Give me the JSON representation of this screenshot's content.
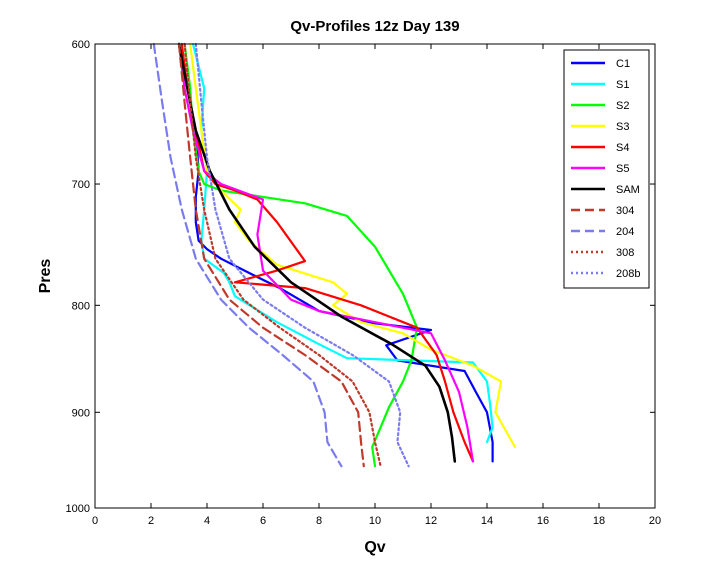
{
  "chart_data": {
    "type": "line",
    "title": "Qv-Profiles 12z Day 139",
    "xlabel": "Qv",
    "ylabel": "Pres",
    "xlim": [
      0,
      20
    ],
    "ylim": [
      600,
      1000
    ],
    "y_reversed": true,
    "y_scale": "log",
    "x_ticks": [
      "0",
      "2",
      "4",
      "6",
      "8",
      "10",
      "12",
      "14",
      "16",
      "18",
      "20"
    ],
    "y_ticks": [
      "600",
      "700",
      "800",
      "900",
      "1000"
    ],
    "grid": false,
    "legend_position": "top-right",
    "series": [
      {
        "name": "C1",
        "color": "#0000ff",
        "dash": "solid",
        "x": [
          3.0,
          3.3,
          3.6,
          3.7,
          3.6,
          3.6,
          3.7,
          4.0,
          4.5,
          5.5,
          6.6,
          8.0,
          10.0,
          12.0,
          10.4,
          10.8,
          13.2,
          13.6,
          14.0,
          14.2,
          14.2
        ],
        "y": [
          600,
          630,
          660,
          690,
          710,
          730,
          745,
          752,
          760,
          772,
          785,
          805,
          816,
          822,
          836,
          850,
          860,
          880,
          900,
          930,
          950
        ]
      },
      {
        "name": "S1",
        "color": "#00ffff",
        "dash": "solid",
        "x": [
          3.5,
          3.9,
          3.8,
          4.0,
          3.9,
          3.8,
          3.9,
          4.6,
          4.8,
          5.0,
          6.5,
          8.0,
          9.0,
          13.5,
          14.0,
          14.1,
          14.2,
          14.0
        ],
        "y": [
          600,
          630,
          660,
          690,
          720,
          745,
          760,
          772,
          780,
          792,
          815,
          835,
          848,
          852,
          870,
          890,
          915,
          930
        ]
      },
      {
        "name": "S2",
        "color": "#00ff00",
        "dash": "solid",
        "x": [
          3.2,
          3.4,
          3.5,
          3.7,
          3.9,
          4.5,
          6.0,
          7.5,
          9.0,
          10.0,
          11.0,
          11.5,
          11.3,
          11.0,
          10.5,
          10.2,
          9.9,
          10.0
        ],
        "y": [
          600,
          630,
          660,
          690,
          700,
          705,
          710,
          715,
          725,
          750,
          790,
          820,
          850,
          870,
          895,
          915,
          935,
          955
        ]
      },
      {
        "name": "S3",
        "color": "#ffff00",
        "dash": "solid",
        "x": [
          3.4,
          3.6,
          3.8,
          4.0,
          4.5,
          5.2,
          5.0,
          5.5,
          6.5,
          8.5,
          9.0,
          8.5,
          9.5,
          11.0,
          12.0,
          13.5,
          14.5,
          14.3,
          15.0
        ],
        "y": [
          600,
          630,
          660,
          690,
          705,
          720,
          730,
          745,
          765,
          780,
          790,
          800,
          815,
          825,
          840,
          855,
          870,
          900,
          935
        ]
      },
      {
        "name": "S4",
        "color": "#ff0000",
        "dash": "solid",
        "x": [
          3.1,
          3.3,
          3.6,
          3.9,
          4.3,
          5.0,
          5.8,
          6.5,
          7.5,
          6.5,
          5.0,
          7.5,
          9.5,
          11.5,
          12.2,
          12.5,
          12.8,
          13.2,
          13.5
        ],
        "y": [
          600,
          630,
          660,
          690,
          700,
          705,
          712,
          730,
          762,
          770,
          780,
          785,
          800,
          820,
          845,
          870,
          900,
          930,
          950
        ]
      },
      {
        "name": "S5",
        "color": "#ff00ff",
        "dash": "solid",
        "x": [
          3.0,
          3.2,
          3.5,
          3.9,
          4.5,
          6.0,
          5.8,
          6.0,
          7.0,
          8.0,
          10.0,
          12.0,
          12.5,
          13.0,
          13.3,
          13.5
        ],
        "y": [
          600,
          630,
          660,
          690,
          700,
          712,
          740,
          770,
          795,
          805,
          815,
          825,
          850,
          880,
          915,
          950
        ]
      },
      {
        "name": "SAM",
        "color": "#000000",
        "dash": "solid",
        "x": [
          3.0,
          3.3,
          3.6,
          4.1,
          4.8,
          5.7,
          7.0,
          8.8,
          10.6,
          11.8,
          12.3,
          12.6,
          12.75,
          12.85
        ],
        "y": [
          600,
          630,
          660,
          690,
          720,
          750,
          780,
          810,
          835,
          855,
          875,
          900,
          925,
          950
        ]
      },
      {
        "name": "304",
        "color": "#c0392b",
        "dash": "dashed",
        "x": [
          3.0,
          3.2,
          3.4,
          3.6,
          3.9,
          4.8,
          6.0,
          7.5,
          8.8,
          9.4,
          9.5,
          9.6
        ],
        "y": [
          600,
          640,
          680,
          720,
          760,
          795,
          820,
          845,
          870,
          900,
          930,
          955
        ]
      },
      {
        "name": "204",
        "color": "#7b7bf0",
        "dash": "dashed",
        "x": [
          2.1,
          2.4,
          2.7,
          3.1,
          3.6,
          4.5,
          5.5,
          6.7,
          7.8,
          8.2,
          8.3,
          8.8
        ],
        "y": [
          600,
          640,
          680,
          720,
          760,
          795,
          820,
          845,
          870,
          900,
          930,
          955
        ]
      },
      {
        "name": "308",
        "color": "#c0392b",
        "dash": "dotted",
        "x": [
          3.2,
          3.4,
          3.6,
          3.9,
          4.3,
          5.3,
          6.6,
          8.0,
          9.2,
          9.8,
          10.0,
          10.2
        ],
        "y": [
          600,
          640,
          680,
          720,
          760,
          795,
          820,
          845,
          870,
          900,
          930,
          955
        ]
      },
      {
        "name": "208b",
        "color": "#7b7bf0",
        "dash": "dotted",
        "x": [
          3.6,
          3.8,
          4.0,
          4.3,
          4.8,
          6.0,
          7.5,
          9.2,
          10.5,
          10.9,
          10.8,
          11.2
        ],
        "y": [
          600,
          640,
          680,
          720,
          760,
          795,
          820,
          845,
          870,
          900,
          930,
          955
        ]
      }
    ]
  }
}
